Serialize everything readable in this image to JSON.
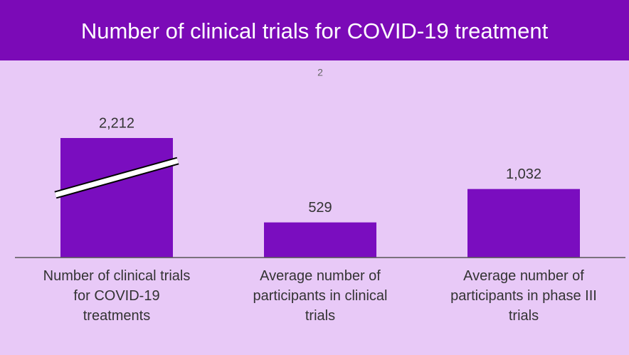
{
  "chart_data": {
    "type": "bar",
    "title": "Number of clinical trials for COVID-19 treatment",
    "annotation": "2",
    "categories": [
      "Number of clinical trials for COVID-19 treatments",
      "Average number of participants in clinical trials",
      "Average number of participants in phase III trials"
    ],
    "values": [
      2212,
      529,
      1032
    ],
    "value_labels": [
      "2,212",
      "529",
      "1,032"
    ],
    "color": "#7a0dbf",
    "ylim": [
      0,
      1800
    ],
    "axis_break": true,
    "grid": false
  }
}
